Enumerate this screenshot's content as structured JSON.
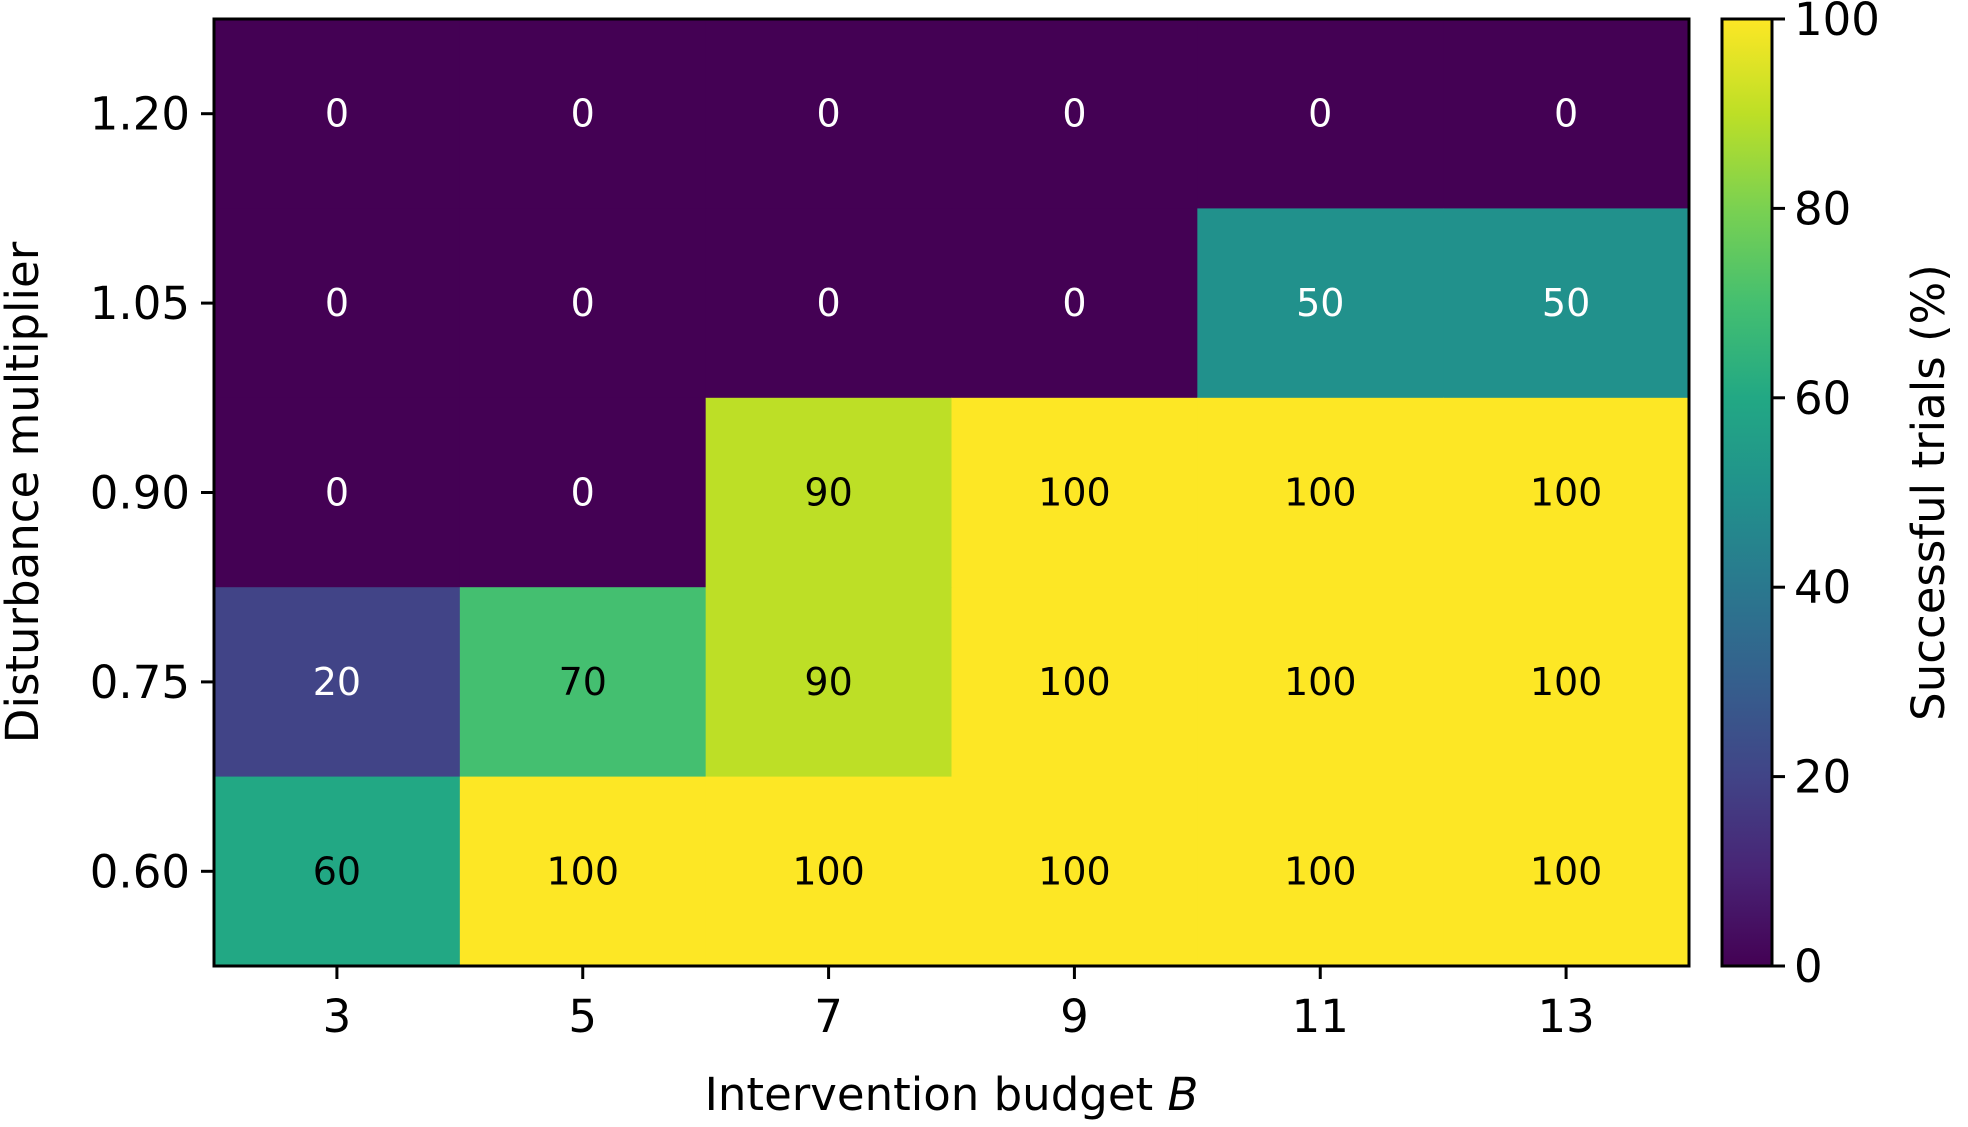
{
  "chart_data": {
    "type": "heatmap",
    "title": "",
    "xlabel": "Intervention budget",
    "xlabel_var": "B",
    "ylabel": "Disturbance multiplier",
    "x": [
      "3",
      "5",
      "7",
      "9",
      "11",
      "13"
    ],
    "y": [
      "1.20",
      "1.05",
      "0.90",
      "0.75",
      "0.60"
    ],
    "values": [
      [
        0,
        0,
        0,
        0,
        0,
        0
      ],
      [
        0,
        0,
        0,
        0,
        50,
        50
      ],
      [
        0,
        0,
        90,
        100,
        100,
        100
      ],
      [
        20,
        70,
        90,
        100,
        100,
        100
      ],
      [
        60,
        100,
        100,
        100,
        100,
        100
      ]
    ],
    "cell_labels": [
      [
        "0",
        "0",
        "0",
        "0",
        "0",
        "0"
      ],
      [
        "0",
        "0",
        "0",
        "0",
        "50",
        "50"
      ],
      [
        "0",
        "0",
        "90",
        "100",
        "100",
        "100"
      ],
      [
        "20",
        "70",
        "90",
        "100",
        "100",
        "100"
      ],
      [
        "60",
        "100",
        "100",
        "100",
        "100",
        "100"
      ]
    ],
    "colorbar": {
      "label": "Successful trials (%)",
      "range": [
        0,
        100
      ],
      "ticks": [
        "0",
        "20",
        "40",
        "60",
        "80",
        "100"
      ],
      "colormap": "viridis"
    },
    "grid": false,
    "legend": "colorbar-right"
  }
}
